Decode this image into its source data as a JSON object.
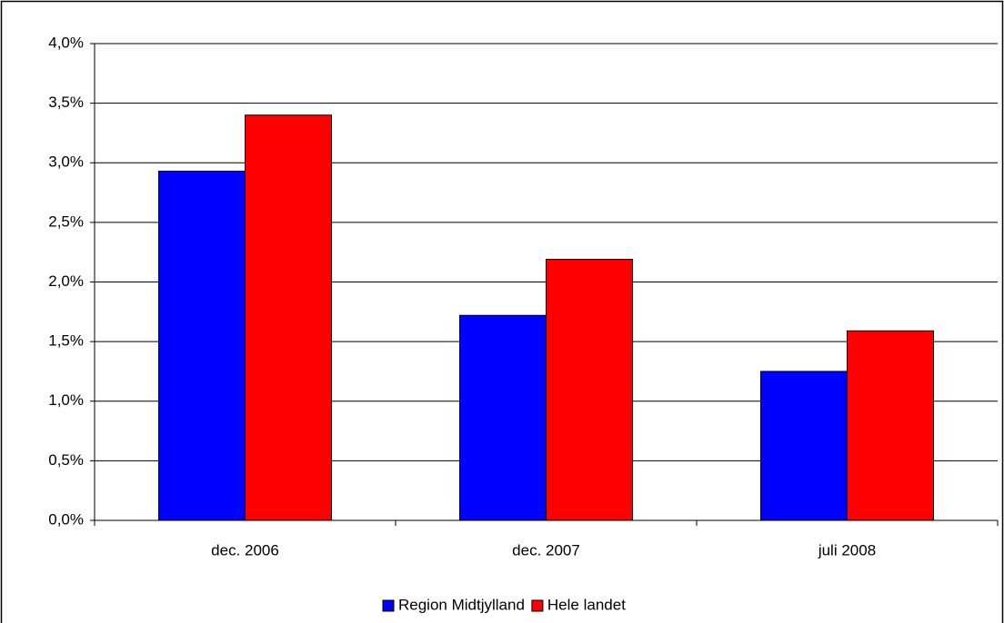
{
  "chart_data": {
    "type": "bar",
    "categories": [
      "dec. 2006",
      "dec. 2007",
      "juli 2008"
    ],
    "series": [
      {
        "name": "Region Midtjylland",
        "color": "#0000ff",
        "values": [
          2.93,
          1.72,
          1.25
        ]
      },
      {
        "name": "Hele landet",
        "color": "#ff0000",
        "values": [
          3.4,
          2.19,
          1.59
        ]
      }
    ],
    "ylim": [
      0,
      4.0
    ],
    "yticks": [
      {
        "value": 0,
        "label": "0,0%"
      },
      {
        "value": 0.5,
        "label": "0,5%"
      },
      {
        "value": 1.0,
        "label": "1,0%"
      },
      {
        "value": 1.5,
        "label": "1,5%"
      },
      {
        "value": 2.0,
        "label": "2,0%"
      },
      {
        "value": 2.5,
        "label": "2,5%"
      },
      {
        "value": 3.0,
        "label": "3,0%"
      },
      {
        "value": 3.5,
        "label": "3,5%"
      },
      {
        "value": 4.0,
        "label": "4,0%"
      }
    ],
    "grid": true,
    "legend": "bottom"
  }
}
